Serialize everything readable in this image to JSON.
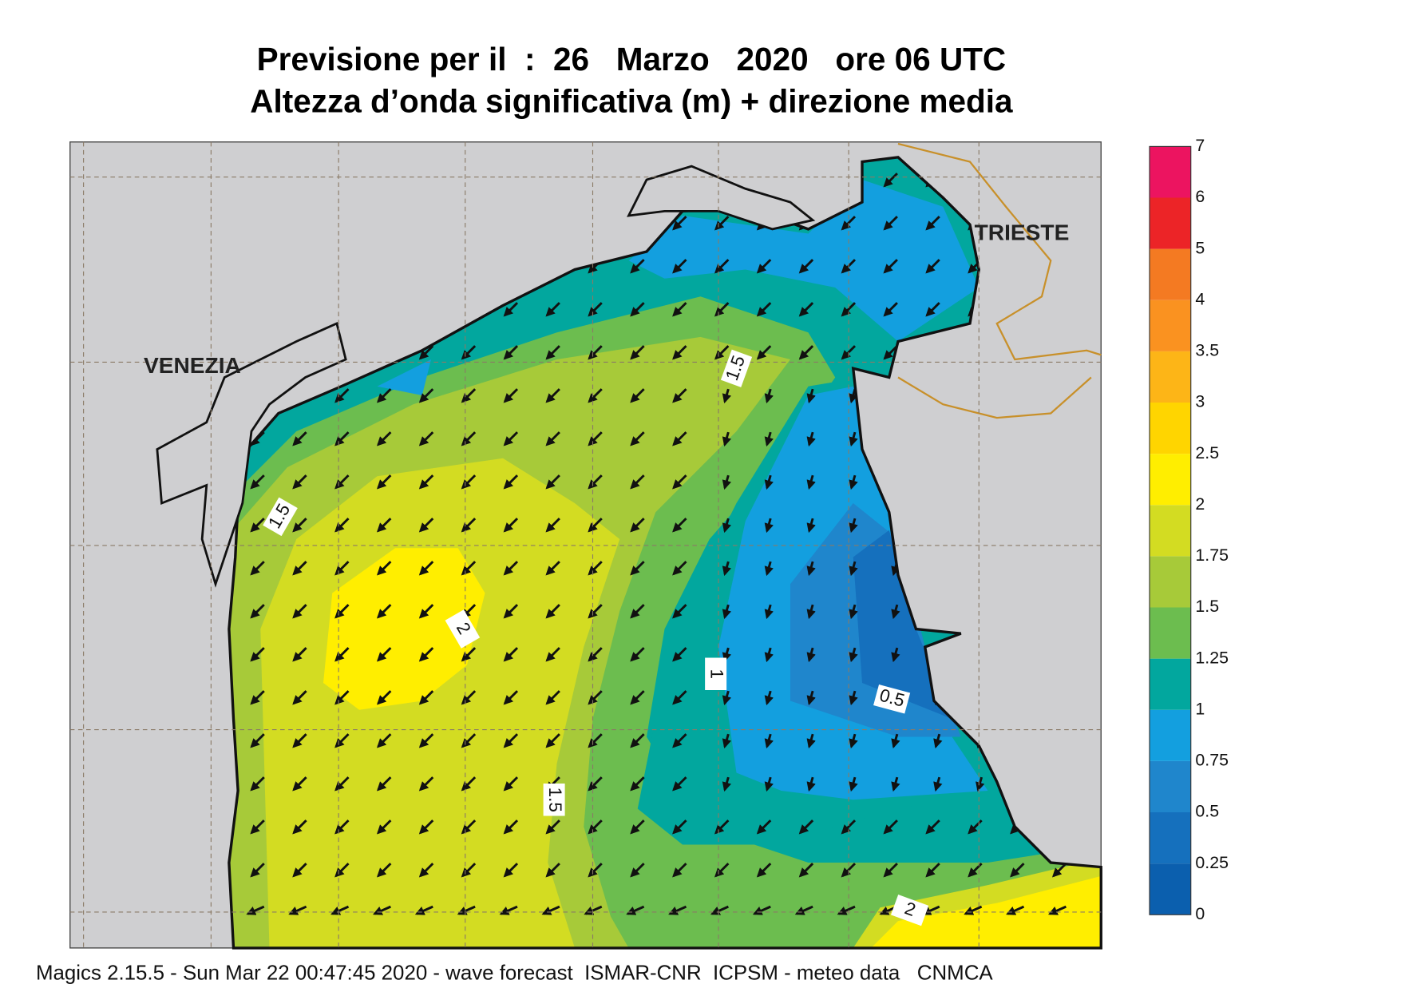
{
  "header": {
    "title": "Previsione per il  :  26   Marzo   2020   ore 06 UTC",
    "subtitle": "Altezza d’onda significativa (m) + direzione media"
  },
  "map": {
    "places": [
      "VENEZIA",
      "TRIESTE"
    ],
    "contour_labels": [
      "1.5",
      "1.5",
      "2",
      "1",
      "0.5",
      "1.5",
      "2"
    ]
  },
  "colorbar": {
    "labels": [
      "0",
      "0.25",
      "0.5",
      "0.75",
      "1",
      "1.25",
      "1.5",
      "1.75",
      "2",
      "2.5",
      "3",
      "3.5",
      "4",
      "5",
      "6",
      "7"
    ],
    "colors": [
      "#0b5fae",
      "#1570bd",
      "#1f86cc",
      "#139fdf",
      "#02a79e",
      "#6cbd4f",
      "#a7ca39",
      "#d3dc22",
      "#ffee00",
      "#ffd500",
      "#fdb517",
      "#fa9220",
      "#f47a22",
      "#ec2427",
      "#ec1460"
    ]
  },
  "footer": "Magics 2.15.5 - Sun Mar 22 00:47:45 2020 - wave forecast  ISMAR-CNR  ICPSM - meteo data   CNMCA"
}
